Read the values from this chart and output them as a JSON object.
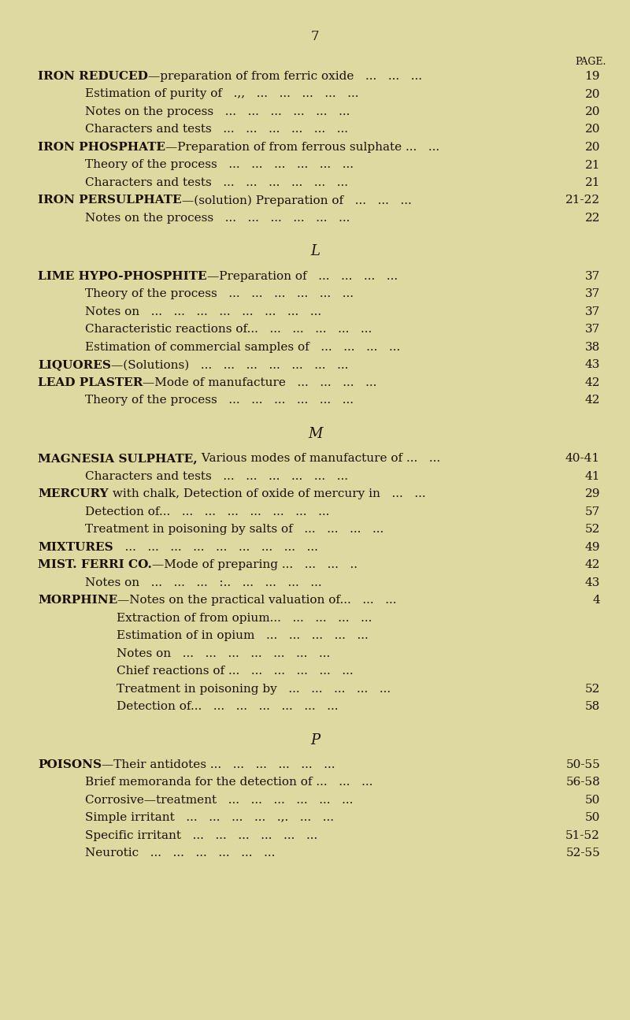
{
  "background_color": "#ddd9a0",
  "page_number": "7",
  "page_label": "PAGE.",
  "text_color": "#1a1008",
  "lines": [
    {
      "indent": 0,
      "bold_prefix": "IRON REDUCED",
      "rest": "—preparation of from ferric oxide   ...   ...   ...",
      "page": "19"
    },
    {
      "indent": 1,
      "bold_prefix": "",
      "rest": "Estimation of purity of   .,,   ...   ...   ...   ...   ...",
      "page": "20"
    },
    {
      "indent": 1,
      "bold_prefix": "",
      "rest": "Notes on the process   ...   ...   ...   ...   ...   ...",
      "page": "20"
    },
    {
      "indent": 1,
      "bold_prefix": "",
      "rest": "Characters and tests   ...   ...   ...   ...   ...   ...",
      "page": "20"
    },
    {
      "indent": 0,
      "bold_prefix": "IRON PHOSPHATE",
      "rest": "—Preparation of from ferrous sulphate ...   ...",
      "page": "20"
    },
    {
      "indent": 1,
      "bold_prefix": "",
      "rest": "Theory of the process   ...   ...   ...   ...   ...   ...",
      "page": "21"
    },
    {
      "indent": 1,
      "bold_prefix": "",
      "rest": "Characters and tests   ...   ...   ...   ...   ...   ...",
      "page": "21"
    },
    {
      "indent": 0,
      "bold_prefix": "IRON PERSULPHATE",
      "rest": "—(solution) Preparation of   ...   ...   ... ",
      "page": "21-22"
    },
    {
      "indent": 1,
      "bold_prefix": "",
      "rest": "Notes on the process   ...   ...   ...   ...   ...   ...",
      "page": "22"
    },
    {
      "indent": -1,
      "bold_prefix": "L",
      "rest": "",
      "page": ""
    },
    {
      "indent": 0,
      "bold_prefix": "LIME HYPO-PHOSPHITE",
      "rest": "—Preparation of   ...   ...   ...   ...",
      "page": "37"
    },
    {
      "indent": 1,
      "bold_prefix": "",
      "rest": "Theory of the process   ...   ...   ...   ...   ...   ...",
      "page": "37"
    },
    {
      "indent": 1,
      "bold_prefix": "",
      "rest": "Notes on   ...   ...   ...   ...   ...   ...   ...   ...",
      "page": "37"
    },
    {
      "indent": 1,
      "bold_prefix": "",
      "rest": "Characteristic reactions of...   ...   ...   ...   ...   ...",
      "page": "37"
    },
    {
      "indent": 1,
      "bold_prefix": "",
      "rest": "Estimation of commercial samples of   ...   ...   ...   ...",
      "page": "38"
    },
    {
      "indent": 0,
      "bold_prefix": "LIQUORES",
      "rest": "—(Solutions)   ...   ...   ...   ...   ...   ...   ...",
      "page": "43"
    },
    {
      "indent": 0,
      "bold_prefix": "LEAD PLASTER",
      "rest": "—Mode of manufacture   ...   ...   ...   ...",
      "page": "42"
    },
    {
      "indent": 1,
      "bold_prefix": "",
      "rest": "Theory of the process   ...   ...   ...   ...   ...   ...",
      "page": "42"
    },
    {
      "indent": -1,
      "bold_prefix": "M",
      "rest": "",
      "page": ""
    },
    {
      "indent": 0,
      "bold_prefix": "MAGNESIA SULPHATE,",
      "rest": " Various modes of manufacture of ...   ... ",
      "page": "40-41"
    },
    {
      "indent": 1,
      "bold_prefix": "",
      "rest": "Characters and tests   ...   ...   ...   ...   ...   ...",
      "page": "41"
    },
    {
      "indent": 0,
      "bold_prefix": "MERCURY",
      "rest": " with chalk, Detection of oxide of mercury in   ...   ...",
      "page": "29"
    },
    {
      "indent": 1,
      "bold_prefix": "",
      "rest": "Detection of...   ...   ...   ...   ...   ...   ...   ...",
      "page": "57"
    },
    {
      "indent": 1,
      "bold_prefix": "",
      "rest": "Treatment in poisoning by salts of   ...   ...   ...   ...",
      "page": "52"
    },
    {
      "indent": 0,
      "bold_prefix": "MIXTURES",
      "rest": "   ...   ...   ...   ...   ...   ...   ...   ...   ...",
      "page": "49"
    },
    {
      "indent": 0,
      "bold_prefix": "MIST. FERRI CO.",
      "rest": "—Mode of preparing ...   ...   ...   ..",
      "page": "42"
    },
    {
      "indent": 1,
      "bold_prefix": "",
      "rest": "Notes on   ...   ...   ...   :..   ...   ...   ...   ...",
      "page": "43"
    },
    {
      "indent": 0,
      "bold_prefix": "MORPHINE",
      "rest": "—Notes on the practical valuation of...   ...   ...",
      "page": "4"
    },
    {
      "indent": 2,
      "bold_prefix": "",
      "rest": "Extraction of from opium...   ...   ...   ...   ...",
      "page": ""
    },
    {
      "indent": 2,
      "bold_prefix": "",
      "rest": "Estimation of in opium   ...   ...   ...   ...   ...",
      "page": ""
    },
    {
      "indent": 2,
      "bold_prefix": "",
      "rest": "Notes on   ...   ...   ...   ...   ...   ...   ...",
      "page": ""
    },
    {
      "indent": 2,
      "bold_prefix": "",
      "rest": "Chief reactions of ...   ...   ...   ...   ...   ...",
      "page": ""
    },
    {
      "indent": 2,
      "bold_prefix": "",
      "rest": "Treatment in poisoning by   ...   ...   ...   ...   ...",
      "page": "52"
    },
    {
      "indent": 2,
      "bold_prefix": "",
      "rest": "Detection of...   ...   ...   ...   ...   ...   ...",
      "page": "58"
    },
    {
      "indent": -1,
      "bold_prefix": "P",
      "rest": "",
      "page": ""
    },
    {
      "indent": 0,
      "bold_prefix": "POISONS",
      "rest": "—Their antidotes ...   ...   ...   ...   ...   ...",
      "page": "50-55"
    },
    {
      "indent": 1,
      "bold_prefix": "",
      "rest": "Brief memoranda for the detection of ...   ...   ...",
      "page": "56-58"
    },
    {
      "indent": 1,
      "bold_prefix": "",
      "rest": "Corrosive—treatment   ...   ...   ...   ...   ...   ...",
      "page": "50"
    },
    {
      "indent": 1,
      "bold_prefix": "",
      "rest": "Simple irritant   ...   ...   ...   ...   .,.   ...   ...",
      "page": "50"
    },
    {
      "indent": 1,
      "bold_prefix": "",
      "rest": "Specific irritant   ...   ...   ...   ...   ...   ...",
      "page": "51-52"
    },
    {
      "indent": 1,
      "bold_prefix": "",
      "rest": "Neurotic   ...   ...   ...   ...   ...   ...",
      "page": "52-55"
    }
  ]
}
